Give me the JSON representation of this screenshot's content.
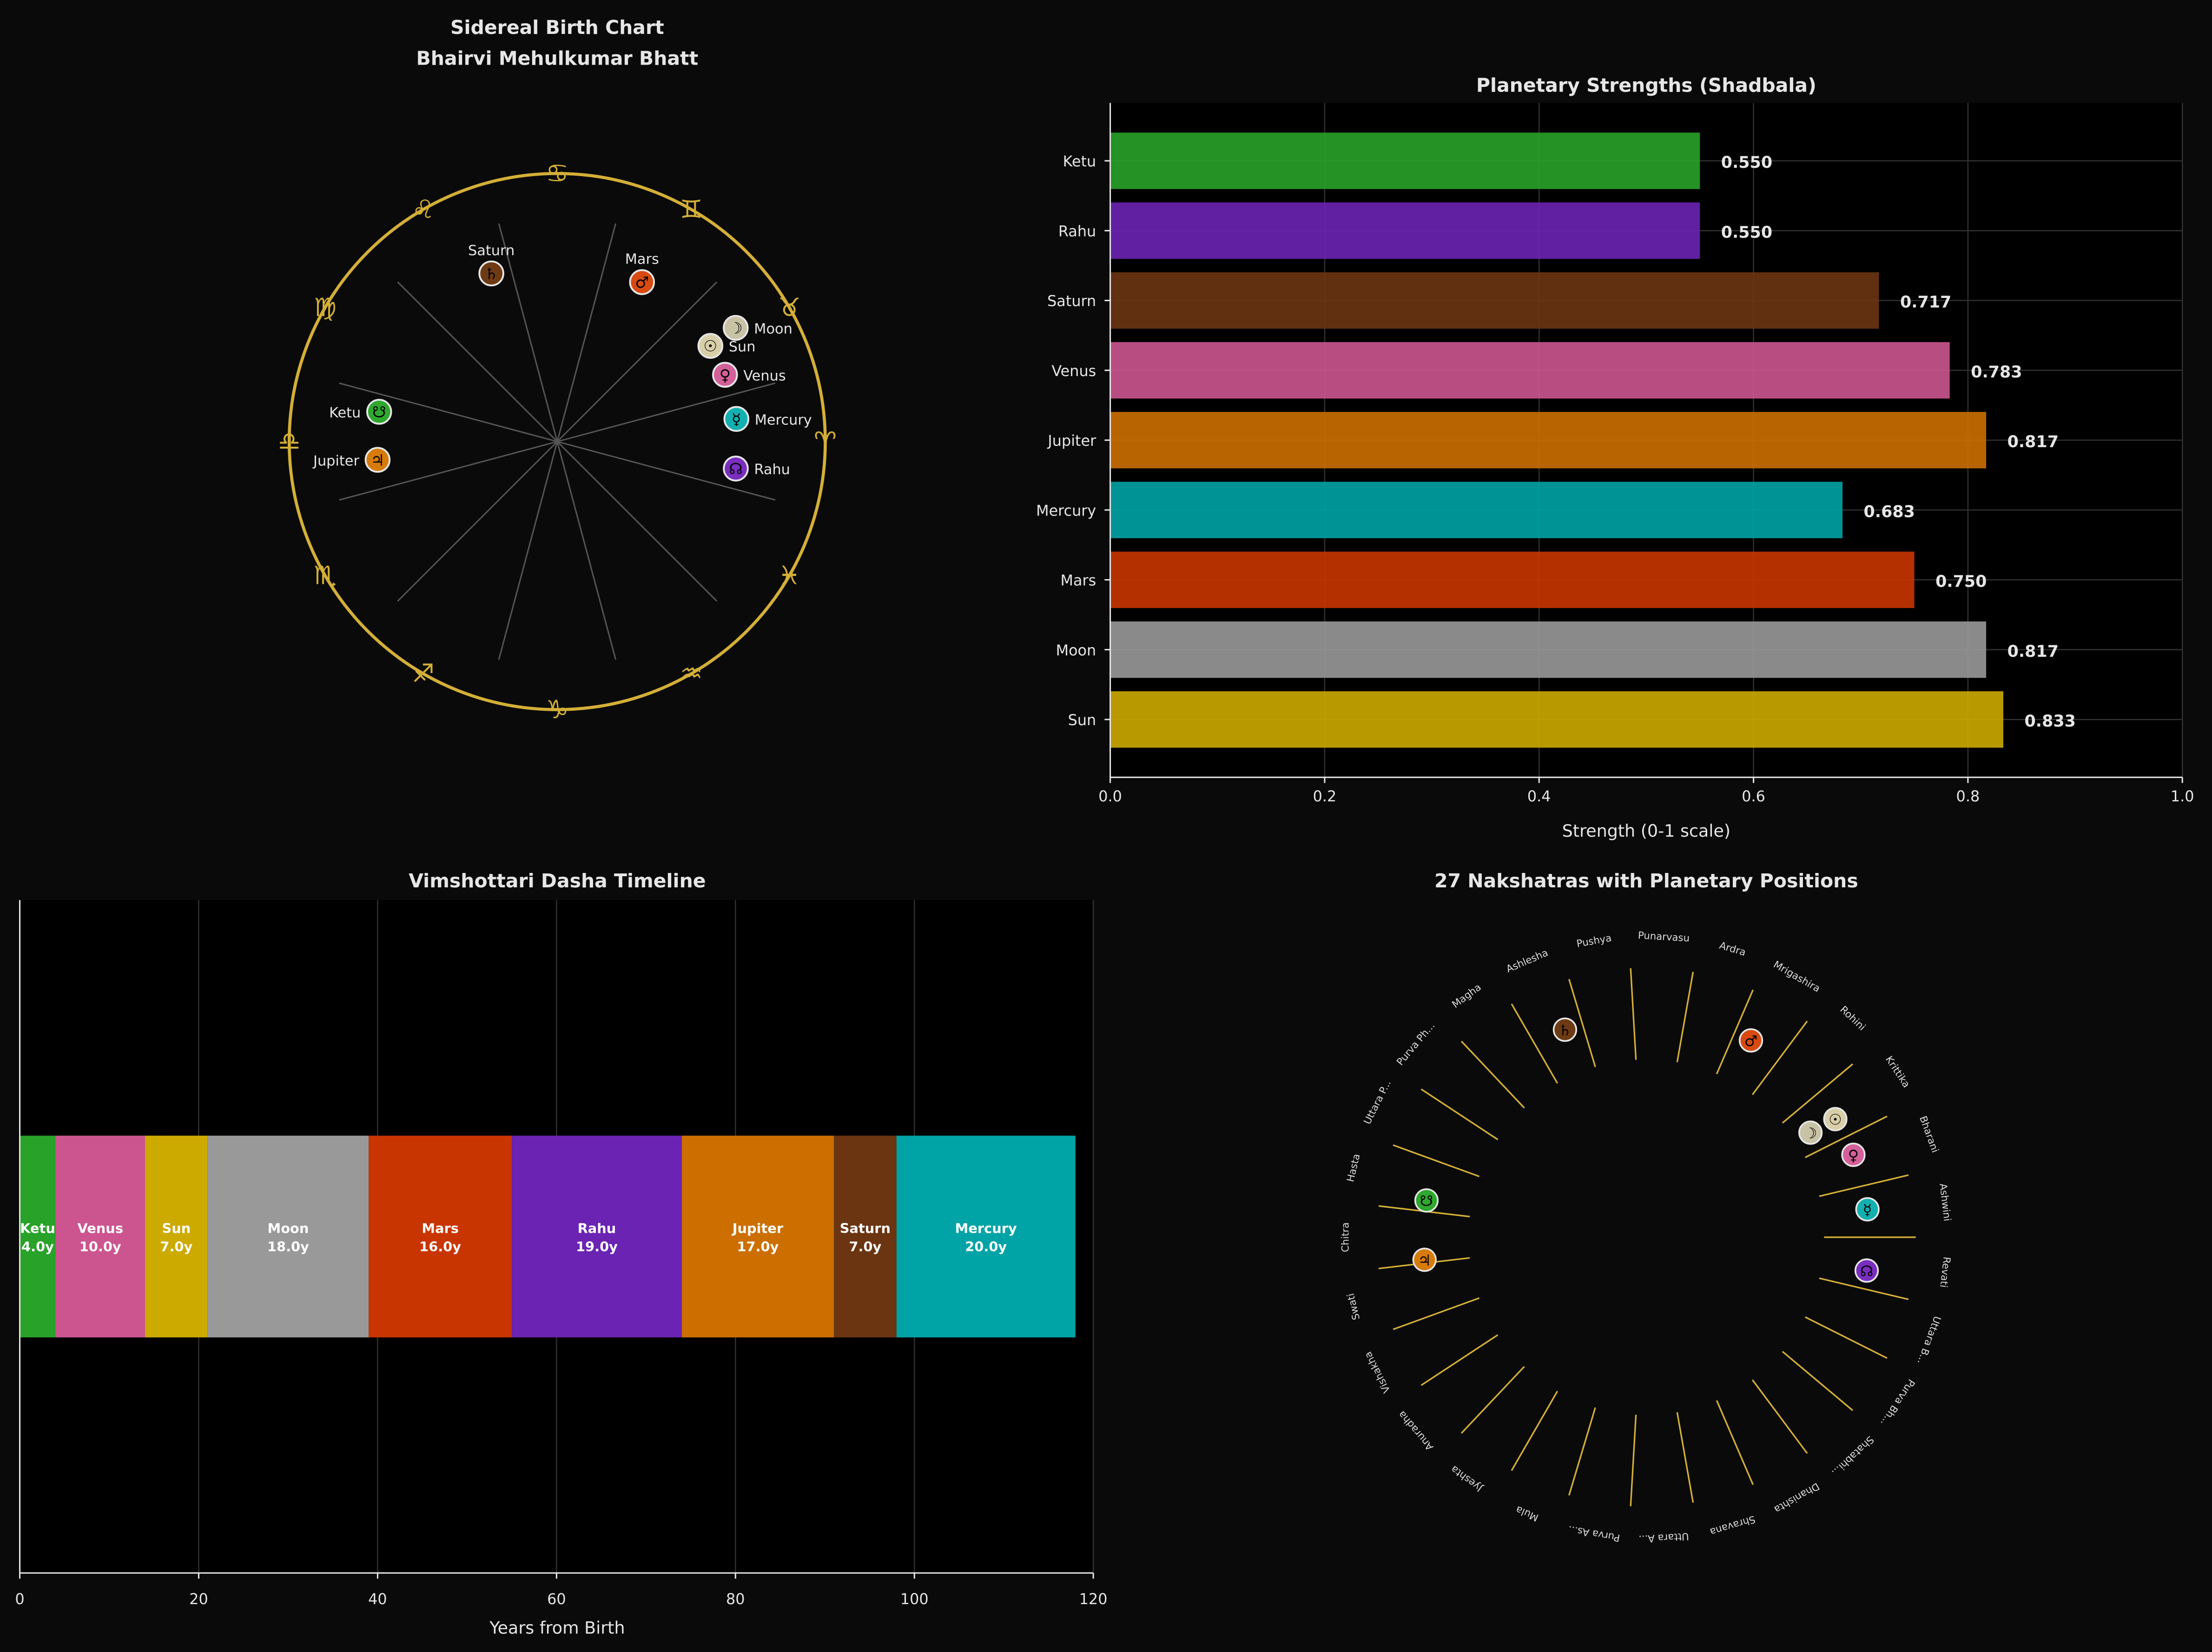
{
  "colors": {
    "background": "#0a0a0a",
    "plot_background": "#000000",
    "zodiac_gold": "#d4af37",
    "text": "#e6e6e6",
    "planets": {
      "Sun": "#ccaa00",
      "Moon": "#999999",
      "Mars": "#c93500",
      "Mercury": "#00a3a6",
      "Jupiter": "#cc6f00",
      "Venus": "#cc5590",
      "Saturn": "#6b3512",
      "Rahu": "#6b23b3",
      "Ketu": "#28a228"
    },
    "planet_markers": {
      "Sun": "#d8cfa8",
      "Moon": "#c9c3a6",
      "Mars": "#d84a10",
      "Mercury": "#12b0b0",
      "Jupiter": "#d77b0a",
      "Venus": "#d4609a",
      "Saturn": "#6e3a14",
      "Rahu": "#7a2ec0",
      "Ketu": "#2ea82e"
    }
  },
  "chart_data": [
    {
      "type": "polar",
      "title_line1": "Sidereal Birth Chart",
      "title_line2": "Bhairvi Mehulkumar Bhatt",
      "zodiac_signs": [
        "♈",
        "♉",
        "♊",
        "♋",
        "♌",
        "♍",
        "♎",
        "♏",
        "♐",
        "♑",
        "♒",
        "♓"
      ],
      "planets": [
        {
          "name": "Saturn",
          "glyph": "♄",
          "longitude": 111.4
        },
        {
          "name": "Mars",
          "glyph": "♂",
          "longitude": 62.0
        },
        {
          "name": "Sun",
          "glyph": "☉",
          "longitude": 32.0
        },
        {
          "name": "Moon",
          "glyph": "☽",
          "longitude": 32.5
        },
        {
          "name": "Venus",
          "glyph": "♀",
          "longitude": 21.7
        },
        {
          "name": "Mercury",
          "glyph": "☿",
          "longitude": 7.2
        },
        {
          "name": "Ketu",
          "glyph": "☋",
          "longitude": 170.5
        },
        {
          "name": "Jupiter",
          "glyph": "♃",
          "longitude": 185.8
        },
        {
          "name": "Rahu",
          "glyph": "☊",
          "longitude": 351.4
        }
      ]
    },
    {
      "type": "bar",
      "orientation": "horizontal",
      "title": "Planetary Strengths (Shadbala)",
      "xlabel": "Strength (0-1 scale)",
      "xlim": [
        0,
        1.0
      ],
      "xticks": [
        "0.0",
        "0.2",
        "0.4",
        "0.6",
        "0.8",
        "1.0"
      ],
      "grid": true,
      "categories": [
        "Sun",
        "Moon",
        "Mars",
        "Mercury",
        "Jupiter",
        "Venus",
        "Saturn",
        "Rahu",
        "Ketu"
      ],
      "values": [
        0.833,
        0.817,
        0.75,
        0.683,
        0.817,
        0.783,
        0.717,
        0.55,
        0.55
      ],
      "value_labels": [
        "0.833",
        "0.817",
        "0.750",
        "0.683",
        "0.817",
        "0.783",
        "0.717",
        "0.550",
        "0.550"
      ]
    },
    {
      "type": "bar",
      "orientation": "horizontal-stacked",
      "title": "Vimshottari Dasha Timeline",
      "xlabel": "Years from Birth",
      "xlim": [
        0,
        120
      ],
      "xticks": [
        "0",
        "20",
        "40",
        "60",
        "80",
        "100",
        "120"
      ],
      "grid": true,
      "periods": [
        {
          "planet": "Ketu",
          "start": 0,
          "years": 4.0,
          "label": "4.0y"
        },
        {
          "planet": "Venus",
          "start": 4,
          "years": 10.0,
          "label": "10.0y"
        },
        {
          "planet": "Sun",
          "start": 14,
          "years": 7.0,
          "label": "7.0y"
        },
        {
          "planet": "Moon",
          "start": 21,
          "years": 18.0,
          "label": "18.0y"
        },
        {
          "planet": "Mars",
          "start": 39,
          "years": 16.0,
          "label": "16.0y"
        },
        {
          "planet": "Rahu",
          "start": 55,
          "years": 19.0,
          "label": "19.0y"
        },
        {
          "planet": "Jupiter",
          "start": 74,
          "years": 17.0,
          "label": "17.0y"
        },
        {
          "planet": "Saturn",
          "start": 91,
          "years": 7.0,
          "label": "7.0y"
        },
        {
          "planet": "Mercury",
          "start": 98,
          "years": 20.0,
          "label": "20.0y"
        }
      ]
    },
    {
      "type": "polar",
      "title": "27 Nakshatras with Planetary Positions",
      "nakshatras": [
        "Ashwini",
        "Bharani",
        "Krittika",
        "Rohini",
        "Mrigashira",
        "Ardra",
        "Punarvasu",
        "Pushya",
        "Ashlesha",
        "Magha",
        "Purva Ph...",
        "Uttara P...",
        "Hasta",
        "Chitra",
        "Swati",
        "Vishakha",
        "Anuradha",
        "Jyeshta",
        "Mula",
        "Purva As...",
        "Uttara A...",
        "Shravana",
        "Dhanishta",
        "Shatabhi...",
        "Purva Bh...",
        "Uttara B...",
        "Revati"
      ]
    }
  ]
}
